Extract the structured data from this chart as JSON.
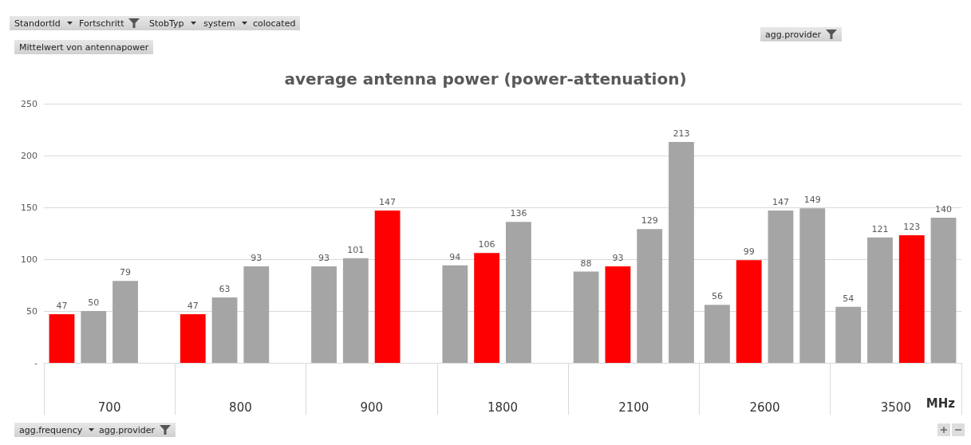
{
  "chart_data": {
    "type": "bar",
    "title": "average antenna power (power-attenuation)",
    "xlabel": "MHz",
    "categories": [
      "700",
      "800",
      "900",
      "1800",
      "2100",
      "2600",
      "3500"
    ],
    "series": [
      {
        "color": "#a5a5a5",
        "colors": [
          "#ff0000",
          "#ff0000",
          "#a5a5a5",
          "#a5a5a5",
          "#a5a5a5",
          "#a5a5a5",
          "#a5a5a5"
        ],
        "values": [
          47,
          47,
          93,
          94,
          88,
          56,
          54
        ]
      },
      {
        "color": "#a5a5a5",
        "colors": [
          "#a5a5a5",
          "#a5a5a5",
          "#a5a5a5",
          "#ff0000",
          "#ff0000",
          "#ff0000",
          "#a5a5a5"
        ],
        "values": [
          50,
          63,
          101,
          106,
          93,
          99,
          121
        ]
      },
      {
        "color": "#a5a5a5",
        "colors": [
          "#a5a5a5",
          "#a5a5a5",
          "#ff0000",
          "#a5a5a5",
          "#a5a5a5",
          "#a5a5a5",
          "#ff0000"
        ],
        "values": [
          79,
          93,
          147,
          136,
          129,
          147,
          123
        ]
      },
      {
        "color": "#a5a5a5",
        "values": [
          null,
          null,
          null,
          null,
          213,
          149,
          140
        ]
      }
    ],
    "ylim": [
      0,
      250
    ],
    "yticks": [
      {
        "value": 0,
        "label": "-"
      },
      50,
      100,
      150,
      200,
      250
    ],
    "grid": "y",
    "data_labels": true,
    "annotations": [
      "StandortId",
      "Fortschritt",
      "StobTyp",
      "system",
      "colocated",
      "Mittelwert von antennapower",
      "agg.frequency",
      "agg.provider",
      "agg.provider"
    ]
  }
}
